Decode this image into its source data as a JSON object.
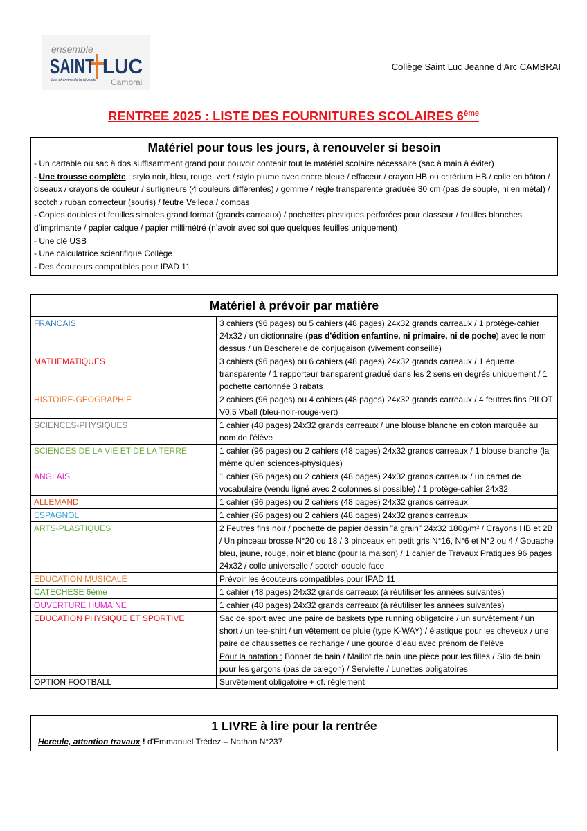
{
  "header": {
    "logo": {
      "top": "ensemble",
      "name_left": "SAINT",
      "name_right": "LUC",
      "tagline": "Les chemins de la réussite",
      "city": "Cambrai"
    },
    "school": "Collège Saint Luc Jeanne d’Arc CAMBRAI"
  },
  "title": {
    "text": "RENTREE 2025 : LISTE DES FOURNITURES SCOLAIRES 6",
    "sup": "ème"
  },
  "daily": {
    "heading": "Matériel pour tous les jours, à renouveler si besoin",
    "items": [
      [
        "- Un cartable ou sac à dos suffisamment grand pour pouvoir contenir tout le matériel scolaire nécessaire (sac à main à éviter)"
      ],
      [
        {
          "bold": "- "
        },
        {
          "bold_underline": "Une trousse complète"
        },
        " : stylo noir, bleu, rouge, vert / stylo plume avec encre bleue / effaceur / crayon HB ou critérium HB / colle en bâton / ciseaux / crayons de couleur / surligneurs (4 couleurs différentes) / gomme / règle transparente graduée 30 cm (pas de souple, ni en métal) / scotch / ruban correcteur (souris) / feutre Velleda / compas"
      ],
      [
        "- Copies doubles et feuilles simples grand format (grands carreaux) / pochettes plastiques perforées pour classeur / feuilles blanches d’imprimante / papier calque / papier millimétré (n’avoir avec soi que quelques feuilles uniquement)"
      ],
      [
        "- Une clé USB"
      ],
      [
        "- Une calculatrice scientifique Collège"
      ],
      [
        "- Des écouteurs compatibles pour IPAD 11"
      ]
    ]
  },
  "subjects": {
    "heading": "Matériel à prévoir par matière",
    "rows": [
      {
        "subject": "FRANCAIS",
        "color": "#2e75b6",
        "cells": [
          [
            "3 cahiers (96 pages) ou 5 cahiers (48 pages) 24x32 grands carreaux / 1 protège-cahier 24x32 / un dictionnaire (",
            {
              "bold": "pas d'édition enfantine, ni primaire, ni de poche"
            },
            ") avec le nom dessus / un Bescherelle de conjugaison (vivement conseillé)"
          ]
        ]
      },
      {
        "subject": "MATHEMATIQUES",
        "color": "#e8141c",
        "cells": [
          [
            "3 cahiers (96 pages) ou 6 cahiers (48 pages) 24x32 grands carreaux / 1 équerre transparente / 1 rapporteur transparent gradué dans les 2 sens en degrés uniquement / 1 pochette cartonnée 3 rabats"
          ]
        ]
      },
      {
        "subject": "HISTOIRE-GEOGRAPHIE",
        "color": "#e47a2e",
        "cells": [
          [
            "2 cahiers (96 pages) ou 4 cahiers (48 pages) 24x32 grands carreaux / 4 feutres fins PILOT V0,5 Vball (bleu-noir-rouge-vert)"
          ]
        ]
      },
      {
        "subject": "SCIENCES-PHYSIQUES",
        "color": "#7f7f7f",
        "cells": [
          [
            "1 cahier (48 pages) 24x32 grands carreaux / une blouse blanche en coton marquée au nom de l'élève"
          ]
        ]
      },
      {
        "subject": "SCIENCES DE LA VIE ET DE LA TERRE",
        "color": "#6fae3e",
        "cells": [
          [
            "1 cahier (96 pages) ou 2 cahiers (48 pages) 24x32 grands carreaux / 1 blouse blanche (la même qu'en sciences-physiques)"
          ]
        ]
      },
      {
        "subject": "ANGLAIS",
        "color": "#e21fc3",
        "cells": [
          [
            "1 cahier (96 pages) ou 2 cahiers (48 pages) 24x32 grands carreaux / un carnet de vocabulaire (vendu ligné avec 2 colonnes si possible) / 1 protège-cahier 24x32"
          ]
        ]
      },
      {
        "subject": "ALLEMAND",
        "color": "#e2481c",
        "cells": [
          [
            "1 cahier (96 pages) ou 2 cahiers (48 pages) 24x32 grands carreaux"
          ]
        ]
      },
      {
        "subject": "ESPAGNOL",
        "color": "#2e9fcb",
        "cells": [
          [
            "1 cahier (96 pages) ou 2 cahiers (48 pages) 24x32 grands carreaux"
          ]
        ]
      },
      {
        "subject": "ARTS-PLASTIQUES",
        "color": "#6fae3e",
        "cells": [
          [
            "2 Feutres fins noir / pochette de papier dessin \"à grain\" 24x32 180g/m² / Crayons HB et 2B / Un pinceau brosse N°20 ou 18 / 3 pinceaux en petit gris N°16, N°6 et N°2 ou 4 / Gouache bleu, jaune, rouge, noir et blanc (pour la maison) / 1 cahier de Travaux Pratiques 96 pages 24x32 / colle universelle / scotch double face"
          ]
        ]
      },
      {
        "subject": "EDUCATION MUSICALE",
        "color": "#e47a2e",
        "cells": [
          [
            "Prévoir les écouteurs compatibles pour IPAD 11"
          ]
        ]
      },
      {
        "subject": "CATECHESE 6ème",
        "color": "#4e9a2e",
        "cells": [
          [
            "1 cahier (48 pages) 24x32 grands carreaux (à réutiliser les années suivantes)"
          ]
        ]
      },
      {
        "subject": "OUVERTURE HUMAINE",
        "color": "#e21fc3",
        "cells": [
          [
            "1 cahier (48 pages) 24x32 grands carreaux (à réutiliser les années suivantes)"
          ]
        ]
      },
      {
        "subject": "EDUCATION PHYSIQUE ET SPORTIVE",
        "color": "#e8141c",
        "cells": [
          [
            "Sac de sport avec une paire de baskets type running obligatoire / un survêtement / un short / un tee-shirt / un vêtement de pluie (type K-WAY) / élastique pour les cheveux / une paire de chaussettes de rechange / une gourde d’eau avec prénom de l’élève"
          ],
          [
            {
              "underline": "Pour la natation :"
            },
            " Bonnet de bain / Maillot de bain une pièce pour les filles / Slip de bain pour les garçons (pas de caleçon) / Serviette / Lunettes obligatoires"
          ]
        ]
      },
      {
        "subject": "OPTION FOOTBALL",
        "color": "#000000",
        "cells": [
          [
            "Survêtement obligatoire + cf. règlement"
          ]
        ]
      }
    ]
  },
  "book": {
    "heading": "1 LIVRE à lire pour la rentrée",
    "line": [
      {
        "bold_italic_underline": "Hercule, attention travaux"
      },
      {
        "bold": " !"
      },
      " d'Emmanuel Trédez – Nathan N°237"
    ]
  }
}
